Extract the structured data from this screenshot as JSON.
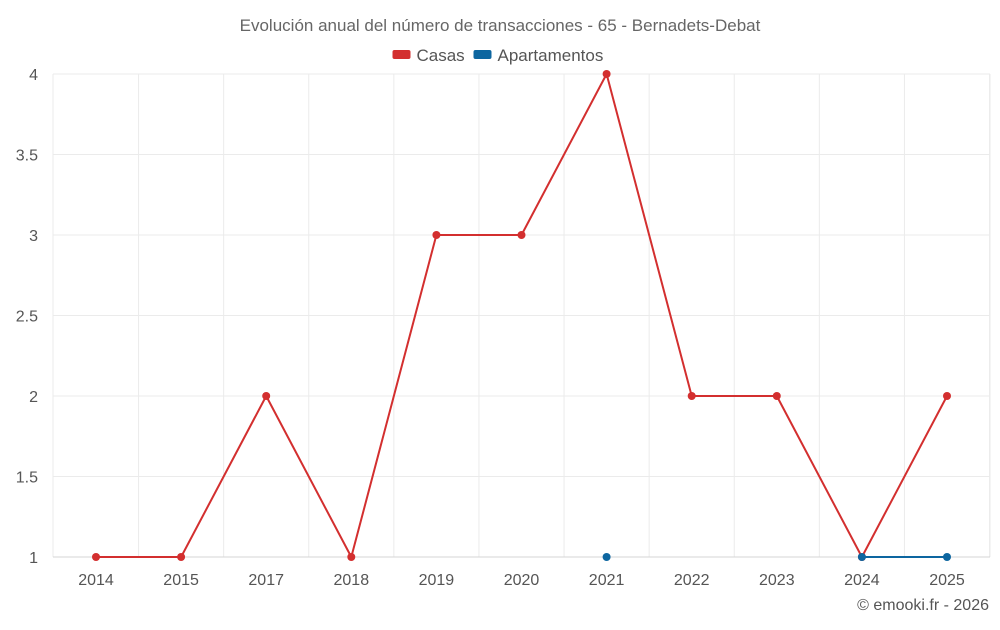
{
  "chart_data": {
    "type": "line",
    "title": "Evolución anual del número de transacciones - 65 - Bernadets-Debat",
    "xlabel": "",
    "ylabel": "",
    "categories": [
      "2014",
      "2015",
      "2017",
      "2018",
      "2019",
      "2020",
      "2021",
      "2022",
      "2023",
      "2024",
      "2025"
    ],
    "ylim": [
      1,
      4
    ],
    "yticks": [
      1,
      1.5,
      2,
      2.5,
      3,
      3.5,
      4
    ],
    "grid": true,
    "legend_position": "top-center",
    "series": [
      {
        "name": "Casas",
        "color": "#d32f2f",
        "values": [
          1,
          1,
          2,
          1,
          3,
          3,
          4,
          2,
          2,
          1,
          2
        ]
      },
      {
        "name": "Apartamentos",
        "color": "#0d66a0",
        "values": [
          null,
          null,
          null,
          null,
          null,
          null,
          1,
          null,
          null,
          1,
          1
        ]
      }
    ]
  },
  "footer": {
    "copyright": "© emooki.fr - 2026"
  },
  "colors": {
    "grid": "#ebebeb",
    "axis_text": "#555555",
    "title_text": "#666666"
  }
}
